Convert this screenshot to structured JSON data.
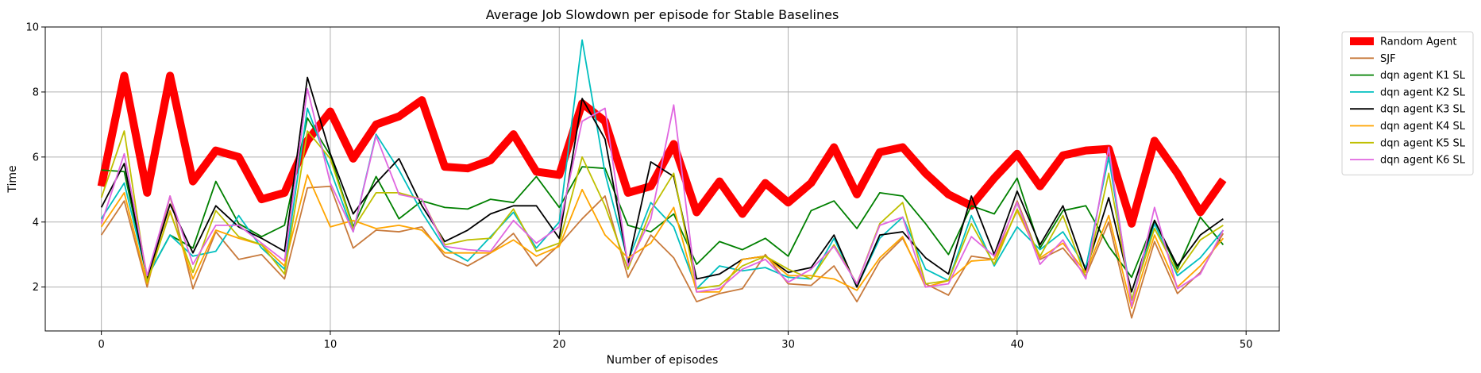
{
  "chart_data": {
    "type": "line",
    "title": "Average Job Slowdown per episode for Stable Baselines",
    "xlabel": "Number of episodes",
    "ylabel": "Time",
    "xlim": [
      -2.45,
      51.45
    ],
    "ylim": [
      0.65,
      10.0
    ],
    "xticks": [
      0,
      10,
      20,
      30,
      40,
      50
    ],
    "yticks": [
      2,
      4,
      6,
      8,
      10
    ],
    "grid": true,
    "legend_position": "outside-top-right",
    "x": [
      0,
      1,
      2,
      3,
      4,
      5,
      6,
      7,
      8,
      9,
      10,
      11,
      12,
      13,
      14,
      15,
      16,
      17,
      18,
      19,
      20,
      21,
      22,
      23,
      24,
      25,
      26,
      27,
      28,
      29,
      30,
      31,
      32,
      33,
      34,
      35,
      36,
      37,
      38,
      39,
      40,
      41,
      42,
      43,
      44,
      45,
      46,
      47,
      48,
      49
    ],
    "series": [
      {
        "name": "Random Agent",
        "color": "#ff0000",
        "width": "thick",
        "values": [
          5.1,
          8.5,
          4.9,
          8.5,
          5.25,
          6.2,
          6.0,
          4.7,
          4.9,
          6.5,
          7.4,
          5.95,
          7.0,
          7.25,
          7.75,
          5.7,
          5.65,
          5.9,
          6.7,
          5.55,
          5.45,
          7.65,
          7.1,
          4.9,
          5.1,
          6.4,
          4.3,
          5.25,
          4.25,
          5.2,
          4.6,
          5.2,
          6.3,
          4.85,
          6.15,
          6.3,
          5.5,
          4.85,
          4.5,
          5.35,
          6.1,
          5.1,
          6.05,
          6.2,
          6.25,
          3.95,
          6.5,
          5.5,
          4.3,
          5.3
        ]
      },
      {
        "name": "SJF",
        "color": "#c87a3c",
        "values": [
          3.6,
          4.65,
          2.0,
          4.8,
          1.95,
          3.7,
          2.85,
          3.0,
          2.25,
          5.05,
          5.1,
          3.2,
          3.75,
          3.7,
          3.85,
          2.95,
          2.65,
          3.05,
          3.65,
          2.65,
          3.3,
          4.1,
          4.8,
          2.3,
          3.6,
          2.9,
          1.55,
          1.8,
          1.95,
          3.0,
          2.1,
          2.05,
          2.65,
          1.55,
          2.8,
          3.5,
          2.1,
          1.75,
          2.95,
          2.85,
          4.65,
          2.85,
          3.2,
          2.35,
          4.0,
          1.05,
          3.4,
          1.8,
          2.45,
          3.65
        ]
      },
      {
        "name": "dqn agent K1 SL",
        "color": "#008000",
        "values": [
          5.6,
          5.55,
          2.3,
          3.6,
          3.2,
          5.25,
          3.95,
          3.55,
          3.9,
          7.2,
          6.05,
          3.85,
          5.4,
          4.1,
          4.65,
          4.45,
          4.4,
          4.7,
          4.6,
          5.4,
          4.45,
          5.7,
          5.65,
          3.9,
          3.7,
          4.25,
          2.7,
          3.4,
          3.15,
          3.5,
          2.95,
          4.35,
          4.65,
          3.8,
          4.9,
          4.8,
          3.95,
          3.0,
          4.5,
          4.25,
          5.35,
          3.2,
          4.35,
          4.5,
          3.25,
          2.3,
          4.05,
          2.55,
          4.15,
          3.3
        ]
      },
      {
        "name": "dqn agent K2 SL",
        "color": "#00bfbf",
        "values": [
          4.1,
          5.2,
          2.3,
          3.6,
          2.95,
          3.1,
          4.2,
          3.2,
          2.55,
          7.5,
          5.6,
          3.7,
          6.7,
          5.6,
          4.3,
          3.2,
          2.8,
          3.55,
          4.3,
          3.2,
          4.0,
          9.6,
          5.5,
          2.8,
          4.6,
          3.85,
          1.95,
          2.65,
          2.5,
          2.6,
          2.3,
          2.25,
          3.5,
          2.0,
          3.5,
          4.15,
          2.55,
          2.2,
          4.2,
          2.65,
          3.85,
          3.15,
          3.7,
          2.6,
          6.0,
          1.6,
          3.95,
          2.35,
          2.9,
          3.75
        ]
      },
      {
        "name": "dqn agent K3 SL",
        "color": "#000000",
        "values": [
          4.45,
          5.8,
          2.25,
          4.55,
          3.05,
          4.5,
          3.85,
          3.5,
          3.1,
          8.45,
          6.1,
          4.25,
          5.2,
          5.95,
          4.5,
          3.4,
          3.75,
          4.25,
          4.5,
          4.5,
          3.5,
          7.8,
          6.55,
          2.7,
          5.85,
          5.4,
          2.25,
          2.4,
          2.85,
          2.95,
          2.45,
          2.6,
          3.6,
          2.0,
          3.6,
          3.7,
          2.9,
          2.4,
          4.8,
          3.0,
          4.95,
          3.3,
          4.5,
          2.5,
          4.75,
          1.85,
          4.05,
          2.65,
          3.6,
          4.1
        ]
      },
      {
        "name": "dqn agent K4 SL",
        "color": "#ffa500",
        "values": [
          3.85,
          4.9,
          2.1,
          4.35,
          2.25,
          3.75,
          3.5,
          3.3,
          2.65,
          5.45,
          3.85,
          4.05,
          3.8,
          3.9,
          3.75,
          3.05,
          3.05,
          3.05,
          3.45,
          2.95,
          3.25,
          5.0,
          3.6,
          2.9,
          3.35,
          4.45,
          1.85,
          1.85,
          2.85,
          2.95,
          2.35,
          2.35,
          2.25,
          1.9,
          2.9,
          3.55,
          2.0,
          2.2,
          2.8,
          2.85,
          4.35,
          2.9,
          3.35,
          2.45,
          4.2,
          1.35,
          3.6,
          2.0,
          2.65,
          3.5
        ]
      },
      {
        "name": "dqn agent K5 SL",
        "color": "#bfbf00",
        "values": [
          4.75,
          6.8,
          2.15,
          4.3,
          2.45,
          4.35,
          3.55,
          3.3,
          2.4,
          6.8,
          5.95,
          3.8,
          4.9,
          4.9,
          4.7,
          3.3,
          3.45,
          3.5,
          4.4,
          3.1,
          3.35,
          6.0,
          4.5,
          2.55,
          4.35,
          5.5,
          1.95,
          2.05,
          2.65,
          2.95,
          2.55,
          2.25,
          3.3,
          2.1,
          3.95,
          4.6,
          2.1,
          2.2,
          3.95,
          2.7,
          4.4,
          2.95,
          4.2,
          2.3,
          5.5,
          1.6,
          3.8,
          2.45,
          3.45,
          3.9
        ]
      },
      {
        "name": "dqn agent K6 SL",
        "color": "#e066e0",
        "values": [
          3.95,
          6.1,
          2.35,
          4.8,
          2.7,
          3.9,
          3.9,
          3.35,
          2.8,
          8.1,
          5.2,
          3.7,
          6.65,
          4.85,
          4.7,
          3.25,
          3.15,
          3.1,
          4.05,
          3.35,
          3.85,
          7.1,
          7.5,
          2.65,
          4.1,
          7.6,
          1.85,
          1.95,
          2.55,
          2.85,
          2.15,
          2.55,
          3.25,
          2.1,
          3.9,
          4.15,
          2.0,
          2.1,
          3.55,
          2.95,
          4.6,
          2.7,
          3.45,
          2.25,
          6.3,
          1.4,
          4.45,
          1.95,
          2.4,
          3.75
        ]
      }
    ]
  }
}
